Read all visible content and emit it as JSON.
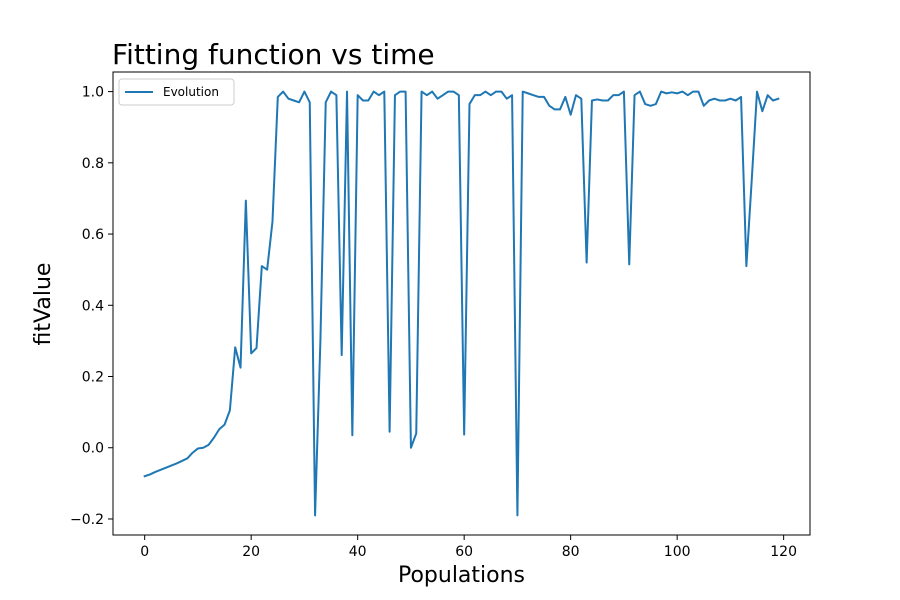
{
  "chart_data": {
    "type": "line",
    "title": "Fitting function vs time",
    "xlabel": "Populations",
    "ylabel": "fitValue",
    "xlim": [
      -5.95,
      124.95
    ],
    "ylim": [
      -0.245,
      1.055
    ],
    "xticks": [
      0,
      20,
      40,
      60,
      80,
      100,
      120
    ],
    "yticks": [
      -0.2,
      0.0,
      0.2,
      0.4,
      0.6,
      0.8,
      1.0
    ],
    "xtick_labels": [
      "0",
      "20",
      "40",
      "60",
      "80",
      "100",
      "120"
    ],
    "ytick_labels": [
      "−0.2",
      "0.0",
      "0.2",
      "0.4",
      "0.6",
      "0.8",
      "1.0"
    ],
    "grid": false,
    "legend_position": "top-left",
    "series": [
      {
        "name": "Evolution",
        "color": "#1f77b4",
        "x": [
          0,
          1,
          2,
          3,
          4,
          5,
          6,
          7,
          8,
          9,
          10,
          11,
          12,
          13,
          14,
          15,
          16,
          17,
          18,
          19,
          20,
          21,
          22,
          23,
          24,
          25,
          26,
          27,
          28,
          29,
          30,
          31,
          32,
          33,
          34,
          35,
          36,
          37,
          38,
          39,
          40,
          41,
          42,
          43,
          44,
          45,
          46,
          47,
          48,
          49,
          50,
          51,
          52,
          53,
          54,
          55,
          56,
          57,
          58,
          59,
          60,
          61,
          62,
          63,
          64,
          65,
          66,
          67,
          68,
          69,
          70,
          71,
          72,
          73,
          74,
          75,
          76,
          77,
          78,
          79,
          80,
          81,
          82,
          83,
          84,
          85,
          86,
          87,
          88,
          89,
          90,
          91,
          92,
          93,
          94,
          95,
          96,
          97,
          98,
          99,
          100,
          101,
          102,
          103,
          104,
          105,
          106,
          107,
          108,
          109,
          110,
          111,
          112,
          113,
          114,
          115,
          116,
          117,
          118,
          119
        ],
        "y": [
          -0.08,
          -0.075,
          -0.068,
          -0.062,
          -0.056,
          -0.05,
          -0.044,
          -0.037,
          -0.03,
          -0.014,
          -0.002,
          0.0,
          0.008,
          0.028,
          0.052,
          0.065,
          0.105,
          0.282,
          0.225,
          0.694,
          0.265,
          0.28,
          0.51,
          0.5,
          0.635,
          0.985,
          1.0,
          0.98,
          0.975,
          0.97,
          1.0,
          0.97,
          -0.19,
          0.3,
          0.97,
          1.0,
          0.99,
          0.26,
          1.0,
          0.035,
          0.99,
          0.975,
          0.975,
          1.0,
          0.99,
          1.0,
          0.045,
          0.99,
          1.0,
          1.0,
          0.0,
          0.04,
          1.0,
          0.99,
          1.0,
          0.98,
          0.99,
          1.0,
          1.0,
          0.99,
          0.037,
          0.965,
          0.99,
          0.99,
          1.0,
          0.99,
          1.0,
          1.0,
          0.98,
          0.99,
          -0.19,
          1.0,
          0.995,
          0.99,
          0.985,
          0.985,
          0.96,
          0.95,
          0.95,
          0.985,
          0.935,
          0.99,
          0.98,
          0.52,
          0.975,
          0.978,
          0.975,
          0.975,
          0.99,
          0.99,
          1.0,
          0.515,
          0.99,
          1.0,
          0.965,
          0.96,
          0.965,
          1.0,
          0.995,
          0.998,
          0.995,
          1.0,
          0.99,
          1.0,
          1.0,
          0.96,
          0.975,
          0.98,
          0.975,
          0.975,
          0.98,
          0.975,
          0.985,
          0.51,
          0.75,
          1.0,
          0.945,
          0.99,
          0.975,
          0.98
        ]
      }
    ]
  }
}
